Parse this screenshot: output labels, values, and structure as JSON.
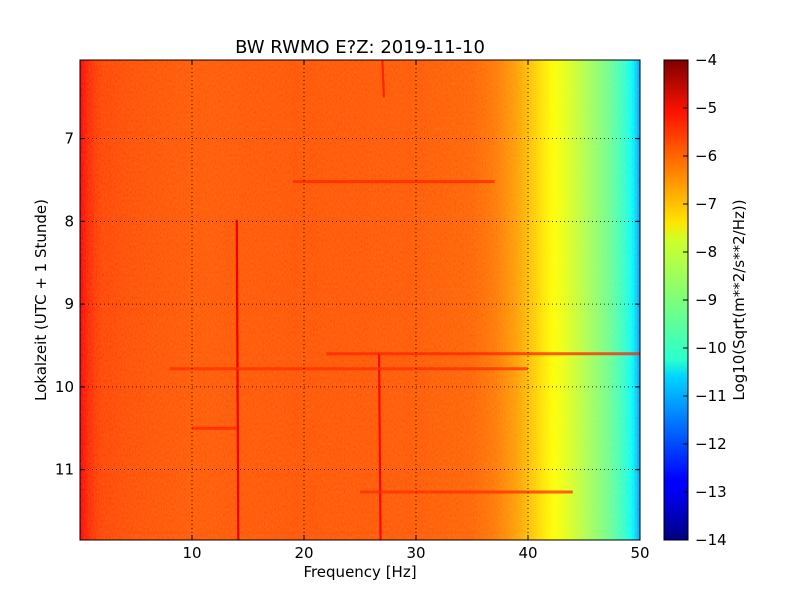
{
  "chart_data": {
    "type": "heatmap",
    "title": "BW RWMO E?Z: 2019-11-10",
    "xlabel": "Frequency [Hz]",
    "ylabel": "Lokalzeit (UTC + 1 Stunde)",
    "xlim": [
      0,
      50
    ],
    "ylim": [
      6.05,
      11.85
    ],
    "y_inverted": true,
    "xticks": [
      10,
      20,
      30,
      40,
      50
    ],
    "yticks": [
      7,
      8,
      9,
      10,
      11
    ],
    "grid": true,
    "colorbar": {
      "label": "Log10(Sqrt(m**2/s**2/Hz))",
      "range": [
        -14,
        -4
      ],
      "ticks": [
        -14,
        -13,
        -12,
        -11,
        -10,
        -9,
        -8,
        -7,
        -6,
        -5,
        -4
      ],
      "colormap": "jet"
    },
    "frequency_profile": {
      "x": [
        0,
        0.3,
        1,
        2,
        5,
        10,
        20,
        30,
        35,
        37,
        39,
        40,
        41,
        42,
        43,
        44,
        45,
        46,
        47,
        48,
        49,
        49.5,
        50
      ],
      "values": [
        -5.2,
        -5.4,
        -5.7,
        -5.9,
        -6.0,
        -6.1,
        -6.05,
        -6.1,
        -6.2,
        -6.4,
        -6.8,
        -7.1,
        -7.4,
        -7.7,
        -7.9,
        -8.2,
        -8.5,
        -8.8,
        -9.1,
        -9.5,
        -10.0,
        -10.5,
        -11.2
      ]
    },
    "features": [
      {
        "type": "vertical_line",
        "frequency": 14.0,
        "time_start": 7.98,
        "time_end": 11.85,
        "value": -5.1
      },
      {
        "type": "vertical_line",
        "frequency": 26.7,
        "time_start": 9.6,
        "time_end": 11.85,
        "value": -5.3
      },
      {
        "type": "vertical_line",
        "frequency": 27.0,
        "time_start": 6.05,
        "time_end": 6.5,
        "value": -5.6
      },
      {
        "type": "horizontal_band",
        "time": 7.52,
        "freq_start": 19,
        "freq_end": 37,
        "value": -5.6
      },
      {
        "type": "horizontal_band",
        "time": 9.6,
        "freq_start": 22,
        "freq_end": 50,
        "value": -5.6
      },
      {
        "type": "horizontal_band",
        "time": 9.78,
        "freq_start": 8,
        "freq_end": 40,
        "value": -5.7
      },
      {
        "type": "horizontal_band",
        "time": 10.5,
        "freq_start": 10,
        "freq_end": 14,
        "value": -5.6
      },
      {
        "type": "horizontal_band",
        "time": 11.27,
        "freq_start": 25,
        "freq_end": 44,
        "value": -5.7
      }
    ]
  }
}
